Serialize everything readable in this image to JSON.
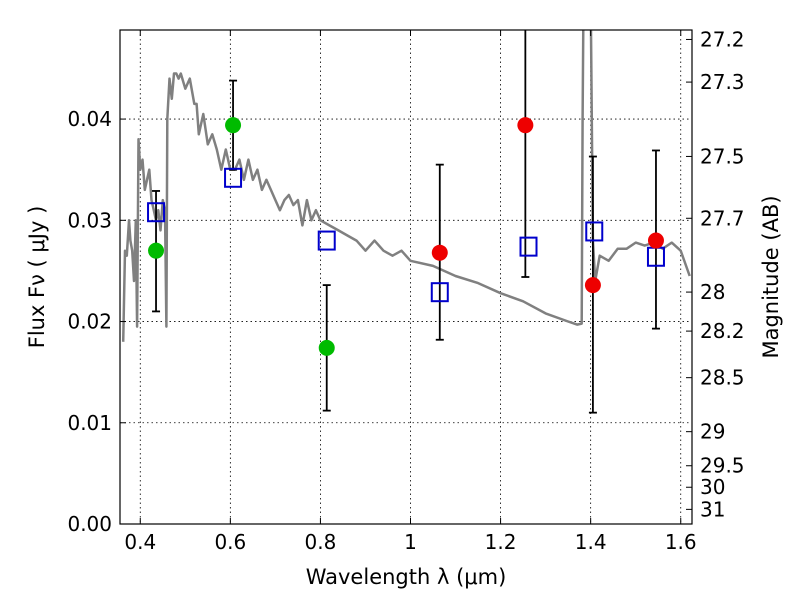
{
  "chart_data": {
    "type": "scatter",
    "xlabel": "Wavelength  λ (μm)",
    "ylabel": "Flux  Fν  ( μJy )",
    "y2label": "Magnitude (AB)",
    "xlim": [
      0.355,
      1.625
    ],
    "ylim": [
      0.0,
      0.0488
    ],
    "grid": true,
    "x_ticks": [
      0.4,
      0.6,
      0.8,
      1.0,
      1.2,
      1.4,
      1.6
    ],
    "x_tick_labels": [
      "0.4",
      "0.6",
      "0.8",
      "1",
      "1.2",
      "1.4",
      "1.6"
    ],
    "y_ticks": [
      0.0,
      0.01,
      0.02,
      0.03,
      0.04
    ],
    "y_tick_labels": [
      "0.00",
      "0.01",
      "0.02",
      "0.03",
      "0.04"
    ],
    "mag_ticks": [
      27.2,
      27.3,
      27.5,
      27.7,
      28,
      28.2,
      28.5,
      29,
      29.5,
      30,
      31
    ],
    "mag_tick_labels": [
      "27.2",
      "27.3",
      "27.5",
      "27.7",
      "28",
      "28.2",
      "28.5",
      "29",
      "29.5",
      "30",
      "31"
    ],
    "series": [
      {
        "kind": "errorbar",
        "color": "#000000",
        "points": [
          {
            "x": 0.435,
            "lo": 0.021,
            "hi": 0.0329
          },
          {
            "x": 0.606,
            "lo": 0.035,
            "hi": 0.0438
          },
          {
            "x": 0.814,
            "lo": 0.0112,
            "hi": 0.0236
          },
          {
            "x": 1.065,
            "lo": 0.0182,
            "hi": 0.0355
          },
          {
            "x": 1.255,
            "lo": 0.0244,
            "hi": 0.05
          },
          {
            "x": 1.405,
            "lo": 0.011,
            "hi": 0.0363
          },
          {
            "x": 1.545,
            "lo": 0.0193,
            "hi": 0.0369
          }
        ]
      },
      {
        "kind": "dots",
        "color": "#00bb00",
        "x": [
          0.435,
          0.606,
          0.814
        ],
        "y": [
          0.027,
          0.0394,
          0.0174
        ]
      },
      {
        "kind": "dots",
        "color": "#ee0000",
        "x": [
          1.065,
          1.255,
          1.405,
          1.545
        ],
        "y": [
          0.0268,
          0.0394,
          0.0236,
          0.028
        ]
      },
      {
        "kind": "open-squares",
        "color": "#0000cc",
        "x": [
          0.435,
          0.606,
          0.814,
          1.065,
          1.262,
          1.408,
          1.545
        ],
        "y": [
          0.0308,
          0.0342,
          0.028,
          0.0229,
          0.0274,
          0.0289,
          0.0264
        ]
      },
      {
        "kind": "line",
        "color": "#808080",
        "x": [
          0.362,
          0.366,
          0.37,
          0.375,
          0.378,
          0.382,
          0.386,
          0.39,
          0.393,
          0.396,
          0.4,
          0.405,
          0.41,
          0.415,
          0.42,
          0.425,
          0.43,
          0.435,
          0.44,
          0.445,
          0.45,
          0.455,
          0.458,
          0.46,
          0.465,
          0.47,
          0.475,
          0.48,
          0.485,
          0.49,
          0.5,
          0.51,
          0.52,
          0.525,
          0.53,
          0.54,
          0.55,
          0.56,
          0.57,
          0.58,
          0.59,
          0.6,
          0.61,
          0.62,
          0.63,
          0.64,
          0.65,
          0.66,
          0.67,
          0.68,
          0.69,
          0.7,
          0.71,
          0.72,
          0.73,
          0.74,
          0.75,
          0.76,
          0.77,
          0.78,
          0.79,
          0.8,
          0.82,
          0.84,
          0.86,
          0.88,
          0.9,
          0.92,
          0.94,
          0.96,
          0.98,
          1.0,
          1.05,
          1.1,
          1.15,
          1.2,
          1.25,
          1.3,
          1.35,
          1.37,
          1.38,
          1.382,
          1.384,
          1.39,
          1.395,
          1.4,
          1.405,
          1.41,
          1.42,
          1.44,
          1.46,
          1.48,
          1.5,
          1.52,
          1.54,
          1.56,
          1.58,
          1.6,
          1.62
        ],
        "y": [
          0.018,
          0.027,
          0.0265,
          0.03,
          0.028,
          0.027,
          0.024,
          0.03,
          0.0195,
          0.038,
          0.035,
          0.036,
          0.033,
          0.034,
          0.035,
          0.032,
          0.031,
          0.03,
          0.031,
          0.029,
          0.032,
          0.031,
          0.0195,
          0.04,
          0.044,
          0.042,
          0.0445,
          0.0445,
          0.044,
          0.0445,
          0.043,
          0.044,
          0.0415,
          0.0415,
          0.0385,
          0.0405,
          0.0375,
          0.0385,
          0.037,
          0.035,
          0.037,
          0.035,
          0.035,
          0.036,
          0.034,
          0.036,
          0.034,
          0.035,
          0.033,
          0.034,
          0.033,
          0.032,
          0.031,
          0.032,
          0.0325,
          0.0315,
          0.032,
          0.0295,
          0.032,
          0.03,
          0.031,
          0.03,
          0.0295,
          0.029,
          0.0285,
          0.028,
          0.027,
          0.028,
          0.027,
          0.0265,
          0.027,
          0.026,
          0.0255,
          0.0245,
          0.0238,
          0.0228,
          0.022,
          0.0208,
          0.02,
          0.0197,
          0.0198,
          0.04,
          0.052,
          0.052,
          0.052,
          0.052,
          0.028,
          0.024,
          0.0265,
          0.026,
          0.0272,
          0.0272,
          0.0278,
          0.0275,
          0.0278,
          0.0272,
          0.0278,
          0.027,
          0.0245
        ]
      }
    ]
  }
}
